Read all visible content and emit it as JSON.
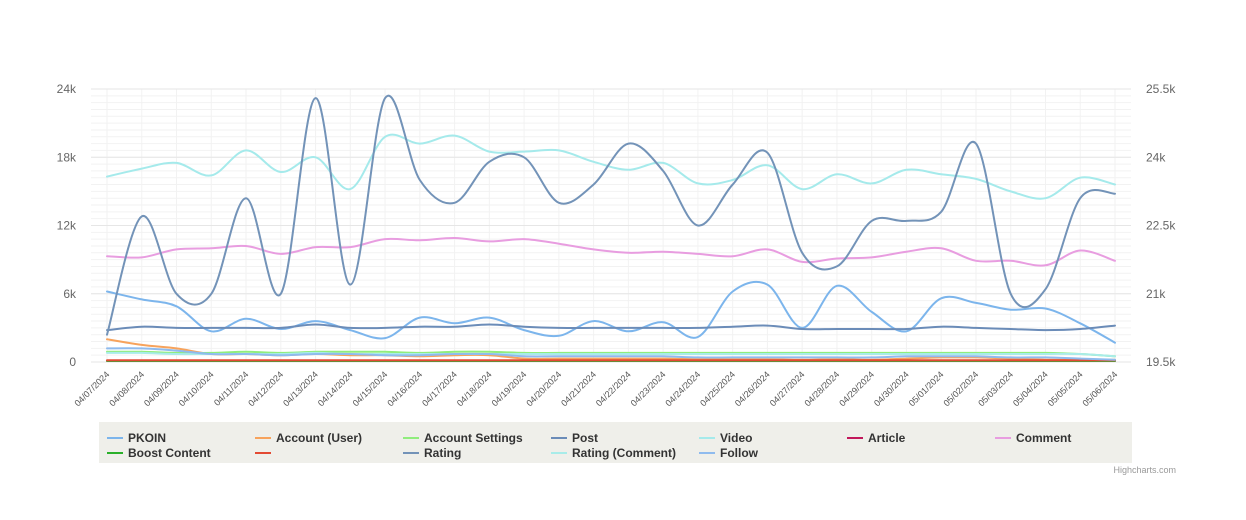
{
  "chart_data": {
    "type": "line",
    "title": "",
    "x": [
      "04/07/2024",
      "04/08/2024",
      "04/09/2024",
      "04/10/2024",
      "04/11/2024",
      "04/12/2024",
      "04/13/2024",
      "04/14/2024",
      "04/15/2024",
      "04/16/2024",
      "04/17/2024",
      "04/18/2024",
      "04/19/2024",
      "04/20/2024",
      "04/21/2024",
      "04/22/2024",
      "04/23/2024",
      "04/24/2024",
      "04/25/2024",
      "04/26/2024",
      "04/27/2024",
      "04/28/2024",
      "04/29/2024",
      "04/30/2024",
      "05/01/2024",
      "05/02/2024",
      "05/03/2024",
      "05/04/2024",
      "05/05/2024",
      "05/06/2024"
    ],
    "y_left": {
      "ticks": [
        "0",
        "6k",
        "12k",
        "18k",
        "24k"
      ],
      "min": 0,
      "max": 24000
    },
    "y_right": {
      "ticks": [
        "19.5k",
        "21k",
        "22.5k",
        "24k",
        "25.5k"
      ],
      "min": 19500,
      "max": 25500
    },
    "grid": true,
    "legend_position": "bottom",
    "series": [
      {
        "name": "PKOIN",
        "color": "#7cb5ec",
        "axis": "left",
        "values": [
          6200,
          5500,
          4900,
          2700,
          3800,
          2900,
          3600,
          2800,
          2100,
          3900,
          3400,
          3900,
          2800,
          2300,
          3600,
          2700,
          3500,
          2200,
          6200,
          6800,
          3000,
          6700,
          4400,
          2700,
          5600,
          5200,
          4600,
          4700,
          3400,
          1700
        ]
      },
      {
        "name": "Account (User)",
        "color": "#f7a35c",
        "axis": "left",
        "values": [
          2000,
          1500,
          1200,
          700,
          700,
          600,
          700,
          600,
          600,
          500,
          600,
          600,
          300,
          300,
          300,
          300,
          300,
          250,
          250,
          250,
          200,
          250,
          200,
          300,
          400,
          400,
          300,
          200,
          200,
          200
        ]
      },
      {
        "name": "Account Settings",
        "color": "#90ed7d",
        "axis": "left",
        "values": [
          900,
          900,
          800,
          800,
          900,
          800,
          900,
          900,
          900,
          800,
          900,
          900,
          800,
          800,
          800,
          800,
          800,
          800,
          800,
          800,
          800,
          800,
          800,
          800,
          800,
          800,
          800,
          800,
          700,
          500
        ]
      },
      {
        "name": "Post",
        "color": "#6b8cb8",
        "axis": "left",
        "values": [
          2800,
          3100,
          3000,
          3000,
          3000,
          3000,
          3300,
          3000,
          3000,
          3100,
          3100,
          3300,
          3100,
          3000,
          3000,
          3000,
          3000,
          3000,
          3100,
          3200,
          2900,
          2900,
          2900,
          2900,
          3100,
          3000,
          2900,
          2800,
          2900,
          3200
        ]
      },
      {
        "name": "Video",
        "color": "#a5eaeb",
        "axis": "left",
        "values": [
          16300,
          17000,
          17500,
          16400,
          18600,
          16700,
          18000,
          15200,
          19800,
          19200,
          19900,
          18500,
          18500,
          18600,
          17600,
          16900,
          17500,
          15700,
          16000,
          17300,
          15200,
          16500,
          15700,
          16900,
          16500,
          16100,
          15000,
          14400,
          16200,
          15600
        ]
      },
      {
        "name": "Article",
        "color": "#c2185b",
        "axis": "left",
        "values": [
          100,
          100,
          100,
          100,
          100,
          100,
          100,
          100,
          100,
          100,
          100,
          100,
          100,
          100,
          100,
          100,
          100,
          100,
          100,
          100,
          100,
          100,
          100,
          100,
          100,
          100,
          100,
          100,
          100,
          100
        ]
      },
      {
        "name": "Comment",
        "color": "#e89de0",
        "axis": "left",
        "values": [
          9300,
          9200,
          9900,
          10000,
          10200,
          9500,
          10100,
          10100,
          10800,
          10700,
          10900,
          10600,
          10800,
          10400,
          9900,
          9600,
          9700,
          9500,
          9300,
          9900,
          8800,
          9100,
          9200,
          9700,
          10000,
          8900,
          8900,
          8500,
          9800,
          8900
        ]
      },
      {
        "name": "Boost Content",
        "color": "#2ab02a",
        "axis": "left",
        "values": [
          100,
          100,
          100,
          100,
          100,
          100,
          100,
          100,
          100,
          100,
          100,
          100,
          100,
          100,
          100,
          100,
          100,
          100,
          100,
          100,
          100,
          100,
          100,
          100,
          100,
          100,
          100,
          100,
          100,
          100
        ]
      },
      {
        "name": "",
        "color": "#e34a33",
        "axis": "left",
        "values": [
          150,
          150,
          150,
          150,
          150,
          150,
          150,
          150,
          150,
          150,
          150,
          150,
          150,
          150,
          150,
          150,
          150,
          150,
          150,
          150,
          150,
          150,
          150,
          150,
          150,
          150,
          150,
          150,
          150,
          150
        ]
      },
      {
        "name": "Rating",
        "color": "#7393b8",
        "axis": "right",
        "values": [
          20100,
          22700,
          21000,
          21000,
          23100,
          21000,
          25300,
          21200,
          25300,
          23500,
          23000,
          23900,
          24000,
          23000,
          23400,
          24300,
          23700,
          22500,
          23400,
          24100,
          21900,
          21600,
          22600,
          22600,
          22800,
          24300,
          21000,
          21100,
          23100,
          23200
        ]
      },
      {
        "name": "Rating (Comment)",
        "color": "#a8ece9",
        "axis": "left",
        "values": [
          800,
          800,
          700,
          700,
          700,
          700,
          800,
          700,
          700,
          700,
          700,
          700,
          700,
          700,
          700,
          700,
          700,
          700,
          700,
          700,
          700,
          700,
          700,
          700,
          700,
          700,
          700,
          700,
          700,
          500
        ]
      },
      {
        "name": "Follow",
        "color": "#8fbbee",
        "axis": "left",
        "values": [
          1200,
          1200,
          1000,
          700,
          700,
          600,
          700,
          700,
          600,
          600,
          700,
          700,
          500,
          500,
          500,
          500,
          500,
          400,
          400,
          400,
          400,
          400,
          400,
          500,
          500,
          500,
          400,
          400,
          300,
          200
        ]
      }
    ]
  },
  "credits": "Highcharts.com"
}
